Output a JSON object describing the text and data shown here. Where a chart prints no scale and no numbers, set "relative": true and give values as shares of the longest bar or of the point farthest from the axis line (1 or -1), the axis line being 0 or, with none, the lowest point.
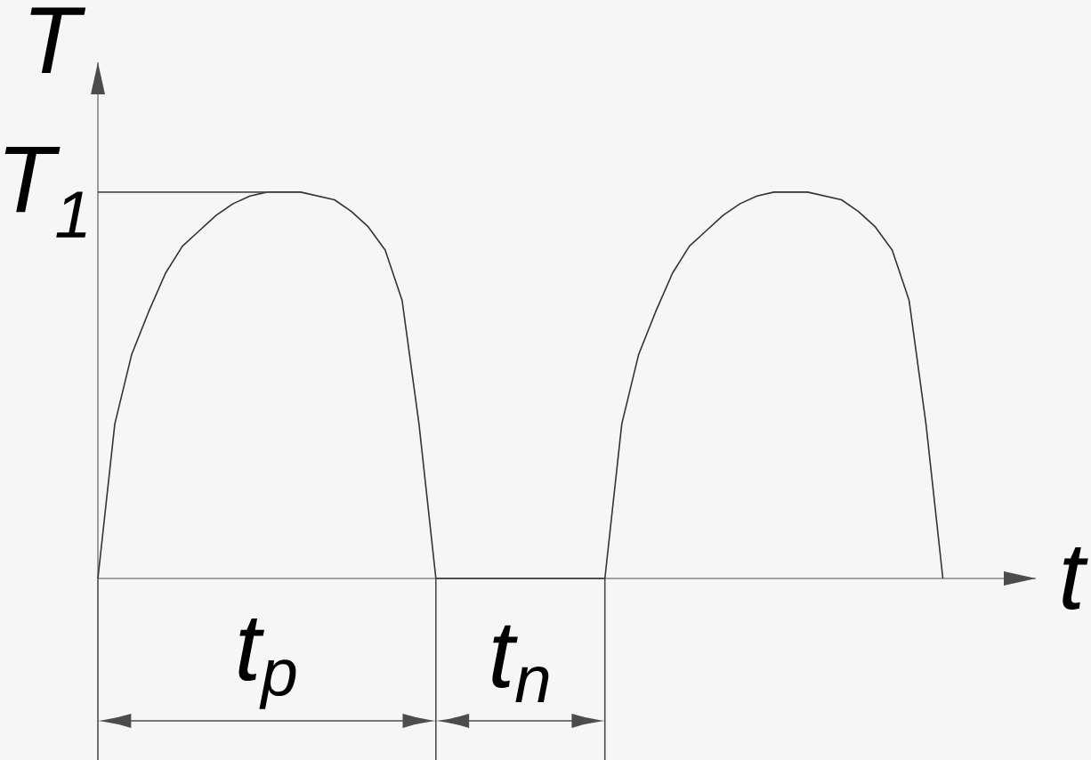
{
  "chart_data": {
    "type": "line",
    "relative": true,
    "xlabel": "t",
    "ylabel": "T",
    "categories": [
      null,
      null,
      null,
      null,
      null,
      null,
      null,
      null,
      null,
      null,
      null,
      null,
      null,
      null,
      null,
      null,
      null,
      null,
      null,
      null,
      null,
      null,
      null,
      null,
      null,
      null,
      null,
      null,
      null,
      null,
      null,
      null,
      null,
      null,
      null,
      null,
      null,
      null,
      null,
      null,
      null,
      null,
      null,
      null,
      null,
      null,
      null,
      null,
      null,
      null,
      null
    ],
    "series": [
      {
        "color": "#333333",
        "values": [
          0,
          0.4,
          0.58,
          0.69,
          0.79,
          0.86,
          0.9,
          0.94,
          0.97,
          0.99,
          1,
          1,
          1,
          0.99,
          0.98,
          0.95,
          0.91,
          0.85,
          0.72,
          0.4,
          0,
          0,
          0,
          0,
          0,
          0,
          0,
          0,
          0,
          0,
          0,
          0.4,
          0.58,
          0.69,
          0.79,
          0.86,
          0.9,
          0.94,
          0.97,
          0.99,
          1,
          1,
          1,
          0.99,
          0.98,
          0.95,
          0.91,
          0.85,
          0.72,
          0.4,
          0
        ]
      }
    ],
    "ref_lines": [
      {
        "axis": "y",
        "value": 1,
        "label": "T$_{1}$"
      }
    ],
    "annotations": [
      "t$_{p}$",
      "t$_{n}$"
    ]
  }
}
